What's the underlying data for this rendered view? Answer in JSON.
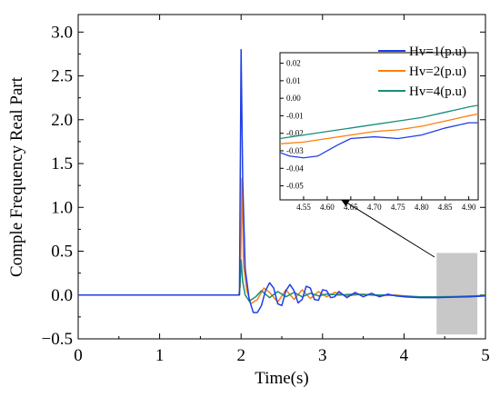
{
  "chart_data": {
    "type": "line",
    "title": "",
    "xlabel": "Time(s)",
    "ylabel": "Comple Frequency Real Part",
    "xlim": [
      0,
      5
    ],
    "ylim": [
      -0.5,
      3.2
    ],
    "x_ticks": [
      "0",
      "1",
      "2",
      "3",
      "4",
      "5"
    ],
    "y_ticks": [
      "−0.5",
      "0.0",
      "0.5",
      "1.0",
      "1.5",
      "2.0",
      "2.5",
      "3.0"
    ],
    "grid": false,
    "legend_position": "top-right (inside inset)",
    "highlight_region": {
      "x": [
        4.4,
        4.9
      ],
      "y": [
        -0.45,
        0.48
      ],
      "color": "#c8c8c8"
    },
    "series": [
      {
        "name": "Hv=1(p.u)",
        "color": "#1f3fe6",
        "x": [
          0,
          1.95,
          1.98,
          2.0,
          2.02,
          2.05,
          2.1,
          2.15,
          2.2,
          2.25,
          2.3,
          2.35,
          2.4,
          2.45,
          2.5,
          2.55,
          2.6,
          2.65,
          2.7,
          2.75,
          2.8,
          2.85,
          2.9,
          2.95,
          3.0,
          3.05,
          3.1,
          3.15,
          3.2,
          3.3,
          3.4,
          3.5,
          3.6,
          3.7,
          3.8,
          3.9,
          4.0,
          4.2,
          4.4,
          4.6,
          4.8,
          5.0
        ],
        "y": [
          0.0,
          0.0,
          0.0,
          2.8,
          1.3,
          0.3,
          -0.05,
          -0.2,
          -0.2,
          -0.12,
          0.05,
          0.14,
          0.08,
          -0.1,
          -0.12,
          0.05,
          0.12,
          0.05,
          -0.09,
          -0.05,
          0.1,
          0.08,
          -0.05,
          -0.06,
          0.06,
          0.05,
          -0.03,
          -0.02,
          0.04,
          -0.03,
          0.03,
          -0.02,
          0.02,
          -0.02,
          0.01,
          -0.01,
          -0.02,
          -0.03,
          -0.03,
          -0.025,
          -0.02,
          -0.01
        ]
      },
      {
        "name": "Hv=2(p.u)",
        "color": "#ff7f0e",
        "x": [
          0,
          1.97,
          1.99,
          2.01,
          2.03,
          2.07,
          2.12,
          2.2,
          2.28,
          2.35,
          2.45,
          2.55,
          2.65,
          2.75,
          2.85,
          2.95,
          3.05,
          3.15,
          3.3,
          3.5,
          3.7,
          3.9,
          4.1,
          4.3,
          4.5,
          4.7,
          4.9,
          5.0
        ],
        "y": [
          0.0,
          0.0,
          0.1,
          1.33,
          0.35,
          0.05,
          -0.1,
          -0.05,
          0.08,
          0.03,
          -0.08,
          0.06,
          -0.05,
          0.06,
          -0.04,
          0.04,
          -0.02,
          0.03,
          -0.01,
          0.01,
          -0.01,
          0.0,
          -0.02,
          -0.03,
          -0.025,
          -0.02,
          -0.01,
          -0.005
        ]
      },
      {
        "name": "Hv=4(p.u)",
        "color": "#1a8c7a",
        "x": [
          0,
          1.98,
          2.0,
          2.02,
          2.05,
          2.1,
          2.18,
          2.25,
          2.35,
          2.45,
          2.55,
          2.65,
          2.75,
          2.85,
          2.95,
          3.05,
          3.2,
          3.4,
          3.6,
          3.8,
          4.0,
          4.2,
          4.4,
          4.6,
          4.8,
          5.0
        ],
        "y": [
          0.0,
          0.0,
          0.4,
          0.15,
          0.0,
          -0.07,
          -0.02,
          0.05,
          -0.03,
          0.04,
          -0.02,
          0.03,
          -0.02,
          0.02,
          -0.01,
          0.01,
          0.0,
          0.01,
          0.0,
          0.0,
          -0.01,
          -0.02,
          -0.02,
          -0.018,
          -0.012,
          -0.005
        ]
      }
    ],
    "inset": {
      "xlim": [
        4.5,
        4.92
      ],
      "ylim": [
        -0.058,
        0.026
      ],
      "x_ticks": [
        "4.55",
        "4.60",
        "4.65",
        "4.70",
        "4.75",
        "4.80",
        "4.85",
        "4.90"
      ],
      "y_ticks": [
        "0.02",
        "0.01",
        "0.00",
        "-0.01",
        "-0.02",
        "-0.03",
        "-0.04",
        "-0.05"
      ],
      "series": [
        {
          "name": "Hv=1(p.u)",
          "x": [
            4.5,
            4.52,
            4.55,
            4.58,
            4.62,
            4.65,
            4.7,
            4.75,
            4.8,
            4.85,
            4.9,
            4.92
          ],
          "y": [
            -0.031,
            -0.033,
            -0.034,
            -0.033,
            -0.027,
            -0.023,
            -0.022,
            -0.023,
            -0.021,
            -0.017,
            -0.014,
            -0.014
          ]
        },
        {
          "name": "Hv=2(p.u)",
          "x": [
            4.5,
            4.55,
            4.6,
            4.65,
            4.7,
            4.75,
            4.8,
            4.85,
            4.9,
            4.92
          ],
          "y": [
            -0.026,
            -0.025,
            -0.023,
            -0.021,
            -0.019,
            -0.018,
            -0.016,
            -0.013,
            -0.01,
            -0.009
          ]
        },
        {
          "name": "Hv=4(p.u)",
          "x": [
            4.5,
            4.55,
            4.6,
            4.65,
            4.7,
            4.75,
            4.8,
            4.85,
            4.9,
            4.92
          ],
          "y": [
            -0.023,
            -0.021,
            -0.019,
            -0.017,
            -0.015,
            -0.013,
            -0.011,
            -0.008,
            -0.005,
            -0.004
          ]
        }
      ]
    }
  }
}
